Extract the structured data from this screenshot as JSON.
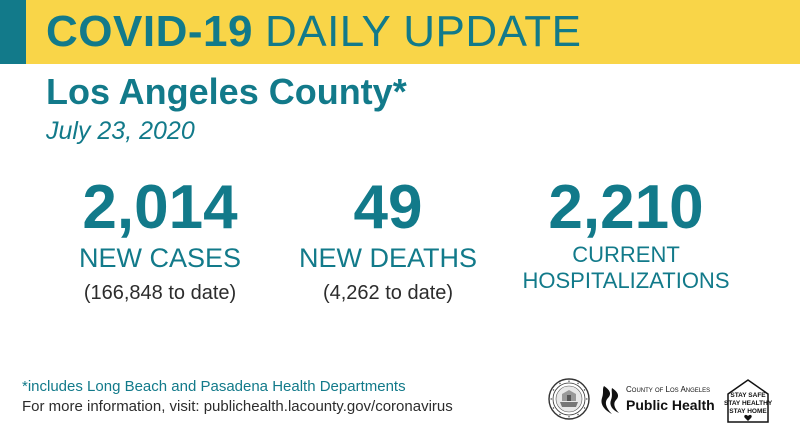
{
  "banner": {
    "title_bold": "COVID-19",
    "title_light": "DAILY UPDATE",
    "stripe_color": "#127a8a",
    "background_color": "#f9d548"
  },
  "header": {
    "county": "Los Angeles County*",
    "date": "July 23, 2020"
  },
  "stats": [
    {
      "value": "2,014",
      "label": "NEW CASES",
      "sub": "(166,848 to date)"
    },
    {
      "value": "49",
      "label": "NEW DEATHS",
      "sub": "(4,262 to date)"
    },
    {
      "value": "2,210",
      "label_line1": "CURRENT",
      "label_line2": "HOSPITALIZATIONS"
    }
  ],
  "footer": {
    "note": "*includes Long Beach and Pasadena Health Departments",
    "info": "For more information, visit: publichealth.lacounty.gov/coronavirus"
  },
  "logos": {
    "seal_icon": "county-seal-icon",
    "public_health_small": "County of Los Angeles",
    "public_health_big": "Public Health",
    "stay_lines": [
      "STAY SAFE",
      "STAY HEALTHY",
      "STAY HOME"
    ]
  },
  "colors": {
    "teal": "#127a8a",
    "yellow": "#f9d548",
    "text_dark": "#2c2c2c"
  }
}
